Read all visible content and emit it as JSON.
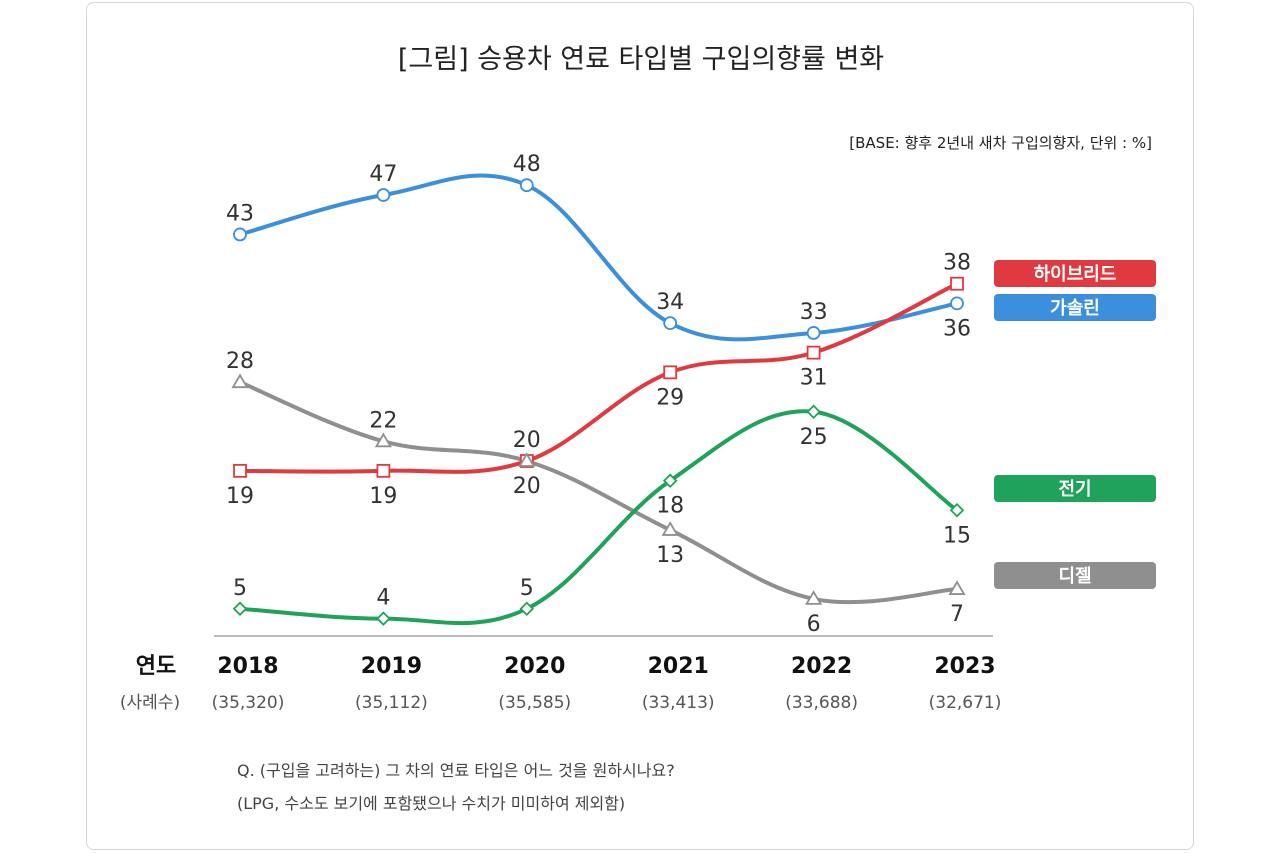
{
  "chart_data": {
    "type": "line",
    "title": "[그림] 승용차 연료 타입별 구입의향률 변화",
    "subtitle": "[BASE: 향후 2년내 새차 구입의향자, 단위 : %]",
    "x_header": "연도",
    "sample_header": "(사례수)",
    "categories": [
      "2018",
      "2019",
      "2020",
      "2021",
      "2022",
      "2023"
    ],
    "sample_sizes": [
      "(35,320)",
      "(35,112)",
      "(35,585)",
      "(33,413)",
      "(33,688)",
      "(32,671)"
    ],
    "ylim": [
      0,
      50
    ],
    "series": [
      {
        "name": "가솔린",
        "color": "#3b8fdc",
        "marker": "circle",
        "values": [
          43,
          47,
          48,
          34,
          33,
          36
        ]
      },
      {
        "name": "하이브리드",
        "color": "#e0393f",
        "marker": "square",
        "values": [
          19,
          19,
          20,
          29,
          31,
          38
        ]
      },
      {
        "name": "디젤",
        "color": "#8f8f8f",
        "marker": "triangle",
        "values": [
          28,
          22,
          20,
          13,
          6,
          7
        ]
      },
      {
        "name": "전기",
        "color": "#1fa35a",
        "marker": "diamond",
        "values": [
          5,
          4,
          5,
          18,
          25,
          15
        ]
      }
    ],
    "legend": [
      "하이브리드",
      "가솔린",
      "전기",
      "디젤"
    ],
    "footnotes": [
      "Q. (구입을 고려하는) 그 차의 연료 타입은 어느 것을 원하시나요?",
      "(LPG, 수소도 보기에 포함됐으나 수치가 미미하여 제외함)"
    ]
  }
}
